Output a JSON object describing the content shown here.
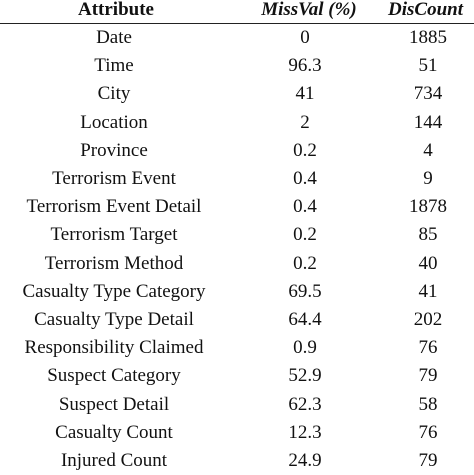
{
  "table": {
    "headers": {
      "attribute": "Attribute",
      "missval": "MissVal (%)",
      "discount": "DisCount"
    },
    "rows": [
      {
        "attribute": "Date",
        "missval": "0",
        "discount": "1885"
      },
      {
        "attribute": "Time",
        "missval": "96.3",
        "discount": "51"
      },
      {
        "attribute": "City",
        "missval": "41",
        "discount": "734"
      },
      {
        "attribute": "Location",
        "missval": "2",
        "discount": "144"
      },
      {
        "attribute": "Province",
        "missval": "0.2",
        "discount": "4"
      },
      {
        "attribute": "Terrorism Event",
        "missval": "0.4",
        "discount": "9"
      },
      {
        "attribute": "Terrorism Event Detail",
        "missval": "0.4",
        "discount": "1878"
      },
      {
        "attribute": "Terrorism Target",
        "missval": "0.2",
        "discount": "85"
      },
      {
        "attribute": "Terrorism Method",
        "missval": "0.2",
        "discount": "40"
      },
      {
        "attribute": "Casualty Type Category",
        "missval": "69.5",
        "discount": "41"
      },
      {
        "attribute": "Casualty Type Detail",
        "missval": "64.4",
        "discount": "202"
      },
      {
        "attribute": "Responsibility Claimed",
        "missval": "0.9",
        "discount": "76"
      },
      {
        "attribute": "Suspect Category",
        "missval": "52.9",
        "discount": "79"
      },
      {
        "attribute": "Suspect Detail",
        "missval": "62.3",
        "discount": "58"
      },
      {
        "attribute": "Casualty Count",
        "missval": "12.3",
        "discount": "76"
      },
      {
        "attribute": "Injured Count",
        "missval": "24.9",
        "discount": "79"
      }
    ]
  }
}
